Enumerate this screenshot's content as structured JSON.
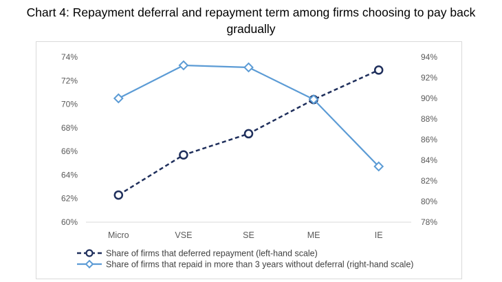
{
  "title_lines": [
    "Chart 4: Repayment deferral and repayment term among firms choosing to pay back",
    "gradually"
  ],
  "chart_data": {
    "type": "line",
    "title": "Chart 4: Repayment deferral and repayment term among firms choosing to pay back gradually",
    "categories": [
      "Micro",
      "VSE",
      "SE",
      "ME",
      "IE"
    ],
    "y_left": {
      "min": 60,
      "max": 74,
      "step": 2,
      "ticks": [
        "60%",
        "62%",
        "64%",
        "66%",
        "68%",
        "70%",
        "72%",
        "74%"
      ]
    },
    "y_right": {
      "min": 78,
      "max": 94,
      "step": 2,
      "ticks": [
        "78%",
        "80%",
        "82%",
        "84%",
        "86%",
        "88%",
        "90%",
        "92%",
        "94%"
      ]
    },
    "grid": false,
    "legend_position": "bottom",
    "series": [
      {
        "name": "Share of firms that deferred repayment (left-hand scale)",
        "axis": "left",
        "style": "dashed",
        "marker": "circle",
        "color": "#1f2f5c",
        "values": [
          62.3,
          65.7,
          67.5,
          70.4,
          72.9
        ]
      },
      {
        "name": "Share of firms that repaid in more than 3 years without deferral (right-hand scale)",
        "axis": "right",
        "style": "solid",
        "marker": "diamond",
        "color": "#5b9bd5",
        "values": [
          90.0,
          93.2,
          93.0,
          89.9,
          83.4
        ]
      }
    ]
  }
}
